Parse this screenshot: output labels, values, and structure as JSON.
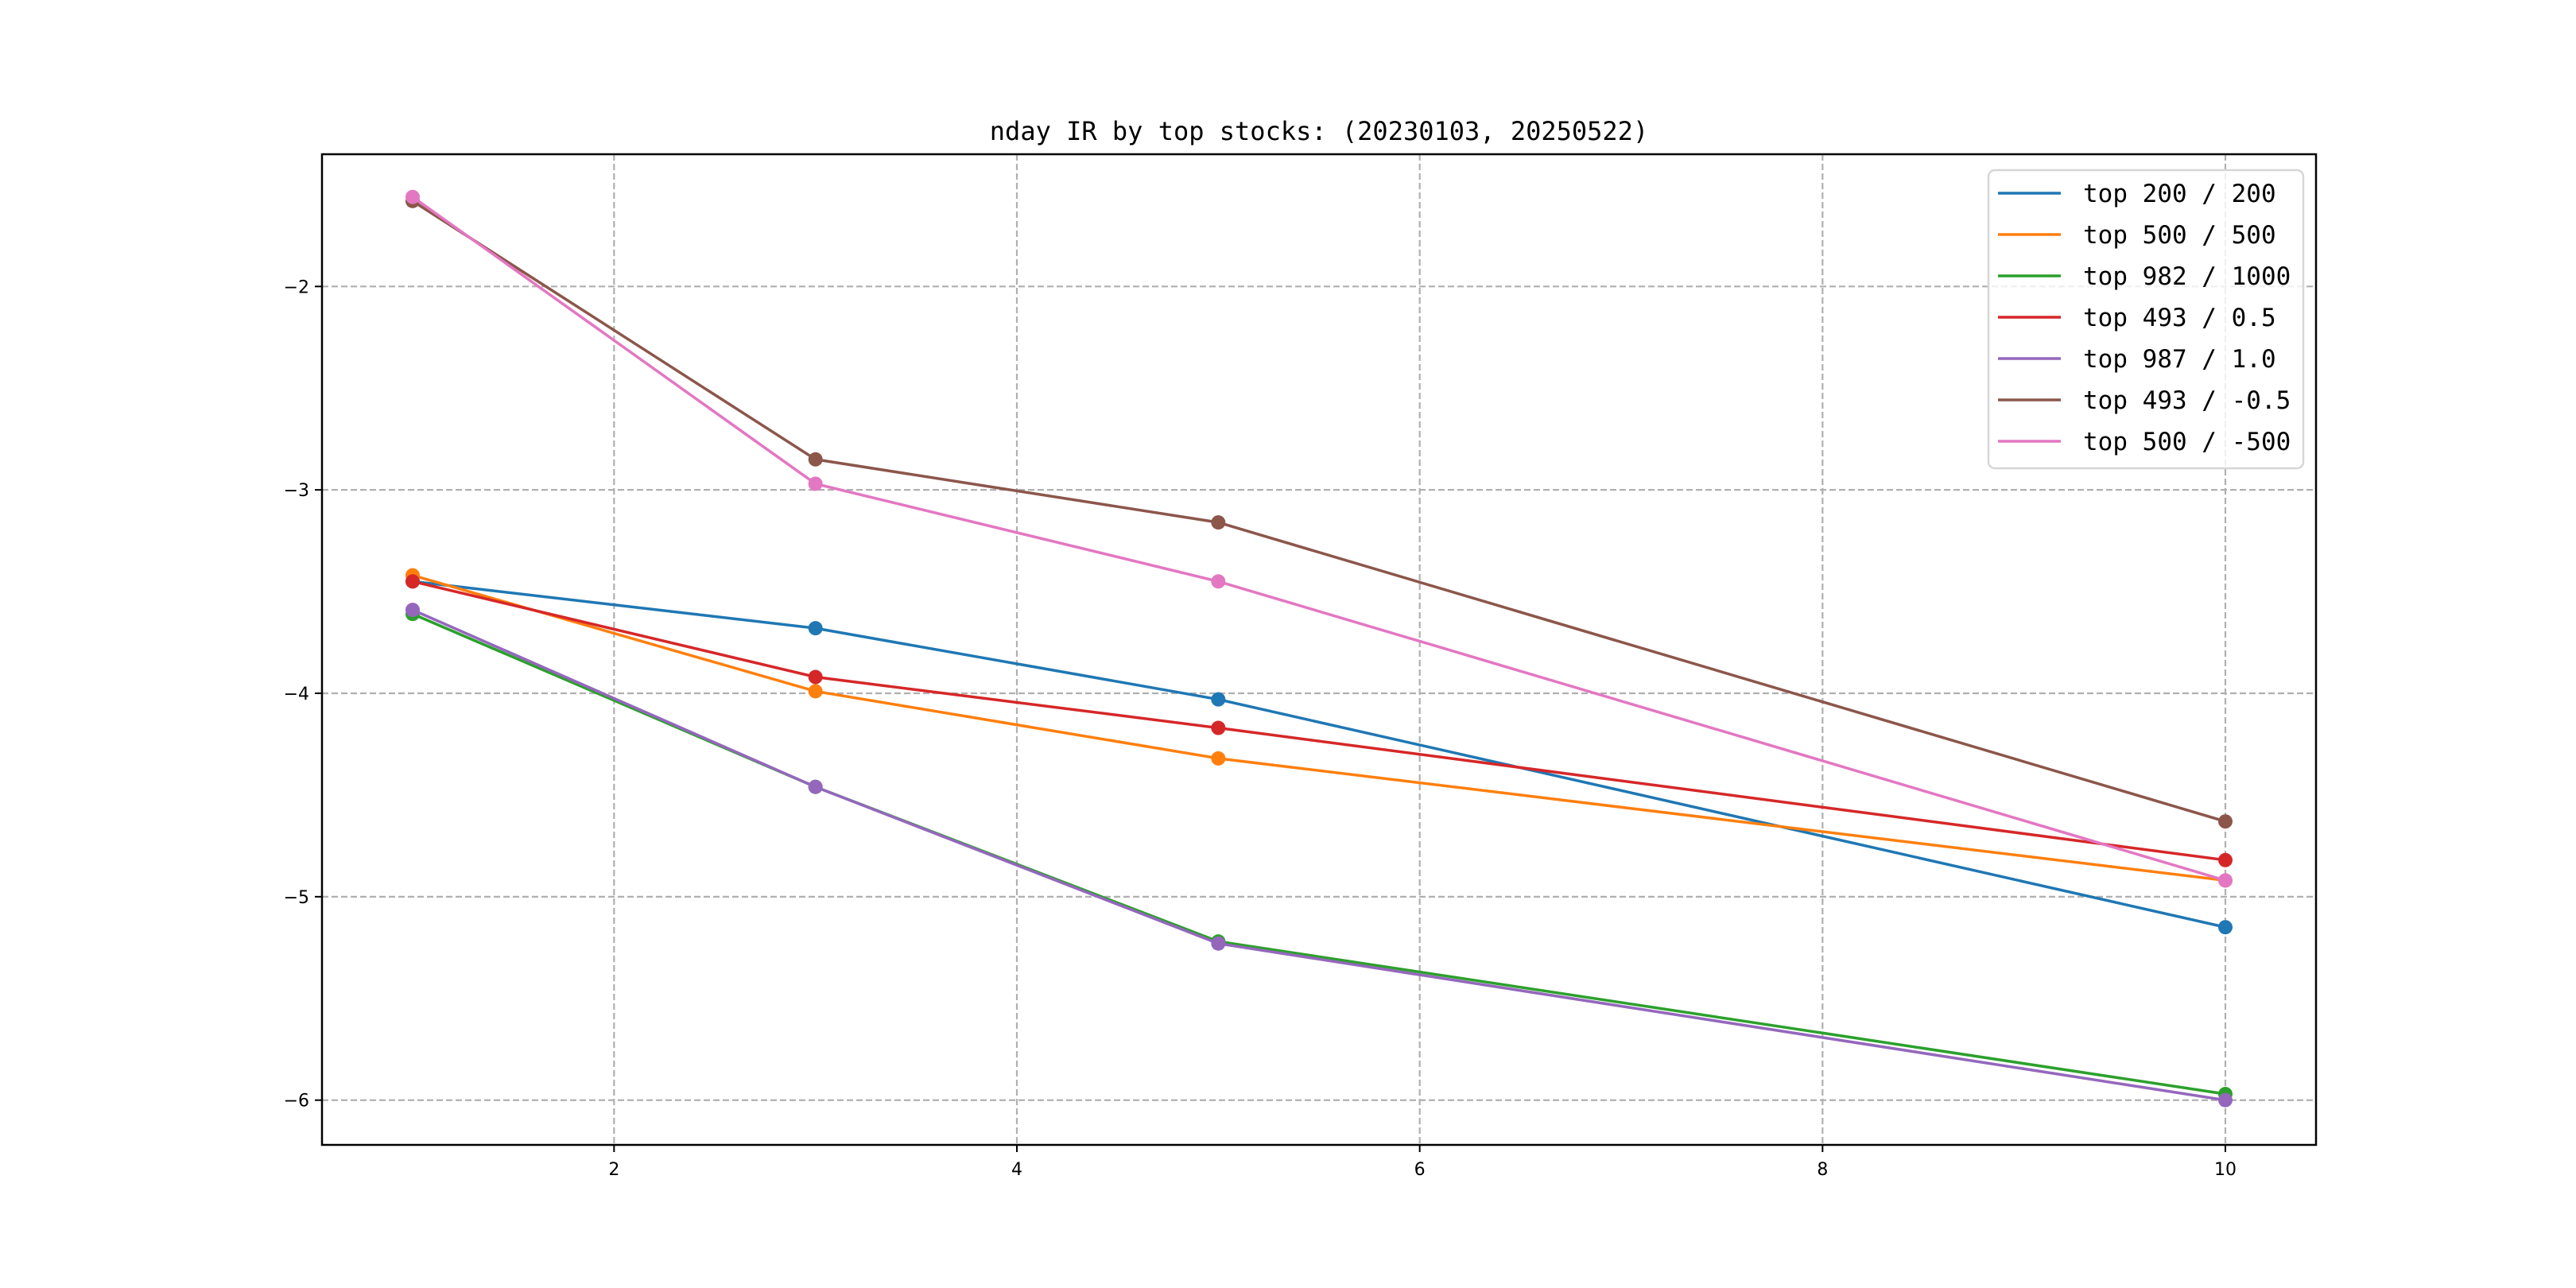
{
  "chart_data": {
    "type": "line",
    "title": "nday IR by top stocks: (20230103, 20250522)",
    "xlabel": "",
    "ylabel": "",
    "x": [
      1,
      3,
      5,
      10
    ],
    "xlim": [
      0.55,
      10.45
    ],
    "ylim": [
      -6.22,
      -1.35
    ],
    "xticks": [
      2,
      4,
      6,
      8,
      10
    ],
    "yticks": [
      -2,
      -3,
      -4,
      -5,
      -6
    ],
    "xtick_labels": [
      "2",
      "4",
      "6",
      "8",
      "10"
    ],
    "ytick_labels": [
      "−2",
      "−3",
      "−4",
      "−5",
      "−6"
    ],
    "grid": true,
    "legend_position": "top-right",
    "series": [
      {
        "name": "top 200 / 200",
        "color": "#1f77b4",
        "values": [
          -3.45,
          -3.68,
          -4.03,
          -5.15
        ]
      },
      {
        "name": "top 500 / 500",
        "color": "#ff7f0e",
        "values": [
          -3.42,
          -3.99,
          -4.32,
          -4.92
        ]
      },
      {
        "name": "top 982 / 1000",
        "color": "#2ca02c",
        "values": [
          -3.61,
          -4.46,
          -5.22,
          -5.97
        ]
      },
      {
        "name": "top 493 / 0.5",
        "color": "#d62728",
        "values": [
          -3.45,
          -3.92,
          -4.17,
          -4.82
        ]
      },
      {
        "name": "top 987 / 1.0",
        "color": "#9467bd",
        "values": [
          -3.59,
          -4.46,
          -5.23,
          -6.0
        ]
      },
      {
        "name": "top 493 / -0.5",
        "color": "#8c564b",
        "values": [
          -1.58,
          -2.85,
          -3.16,
          -4.63
        ]
      },
      {
        "name": "top 500 / -500",
        "color": "#e377c2",
        "values": [
          -1.56,
          -2.97,
          -3.45,
          -4.92
        ]
      }
    ]
  }
}
